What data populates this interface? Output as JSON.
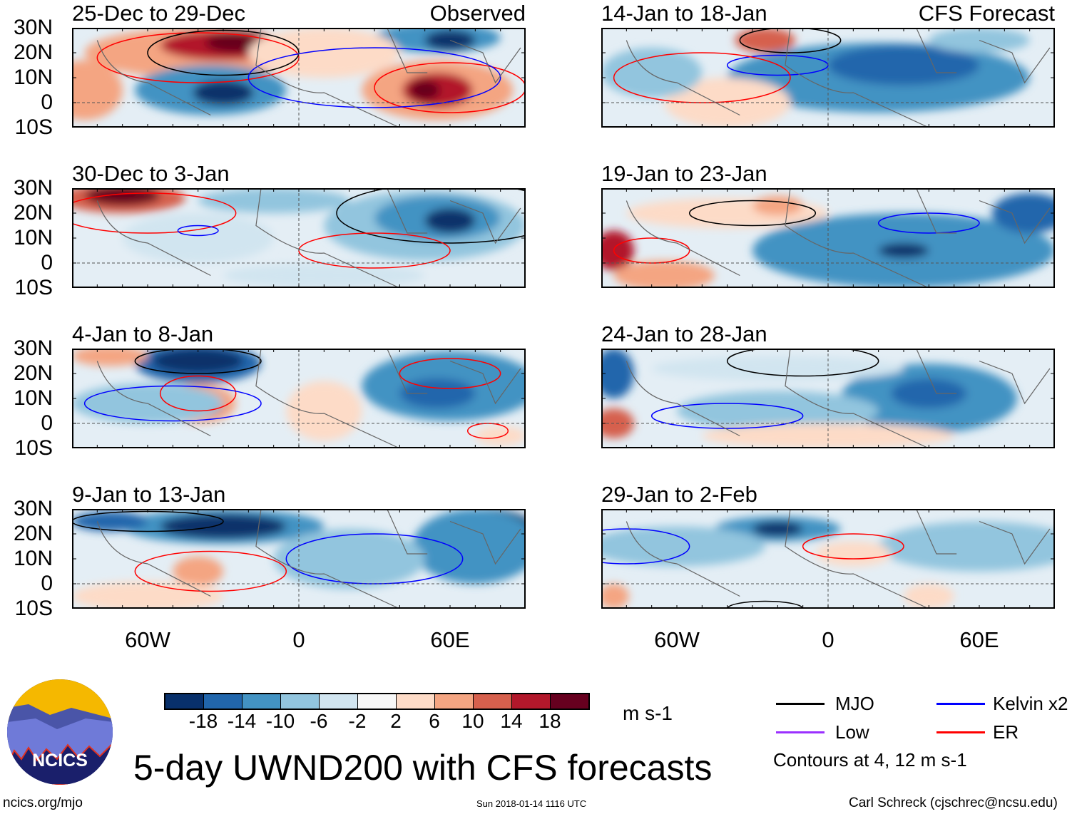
{
  "panels": [
    {
      "title": "25-Dec to 29-Dec",
      "tag": "Observed"
    },
    {
      "title": "30-Dec to 3-Jan"
    },
    {
      "title": "4-Jan to 8-Jan"
    },
    {
      "title": "9-Jan to 13-Jan"
    },
    {
      "title": "14-Jan to 18-Jan",
      "tag": "CFS Forecast"
    },
    {
      "title": "19-Jan to 23-Jan"
    },
    {
      "title": "24-Jan to 28-Jan"
    },
    {
      "title": "29-Jan to 2-Feb"
    }
  ],
  "lat_labels": [
    "30N",
    "20N",
    "10N",
    "0",
    "10S"
  ],
  "lon_labels": [
    "60W",
    "0",
    "60E"
  ],
  "colorbar": {
    "colors": [
      "#08306b",
      "#2166ac",
      "#4393c3",
      "#92c5de",
      "#d1e5f0",
      "#f7f7f7",
      "#fddbc7",
      "#f4a582",
      "#d6604d",
      "#b2182b",
      "#67001f"
    ],
    "labels": [
      "-18",
      "-14",
      "-10",
      "-6",
      "-2",
      "2",
      "6",
      "10",
      "14",
      "18"
    ],
    "units": "m s-1"
  },
  "legend": {
    "items": [
      {
        "label": "MJO",
        "color": "#000000"
      },
      {
        "label": "Kelvin x2",
        "color": "#0000ff"
      },
      {
        "label": "Low",
        "color": "#9b30ff"
      },
      {
        "label": "ER",
        "color": "#ff0000"
      }
    ],
    "note": "Contours at 4, 12 m s-1"
  },
  "title": "5-day UWND200 with CFS forecasts",
  "logo": {
    "text": "NCICS"
  },
  "footer": {
    "url": "ncics.org/mjo",
    "timestamp": "Sun 2018-01-14 1116 UTC",
    "credit": "Carl Schreck (cjschrec@ncsu.edu)"
  }
}
